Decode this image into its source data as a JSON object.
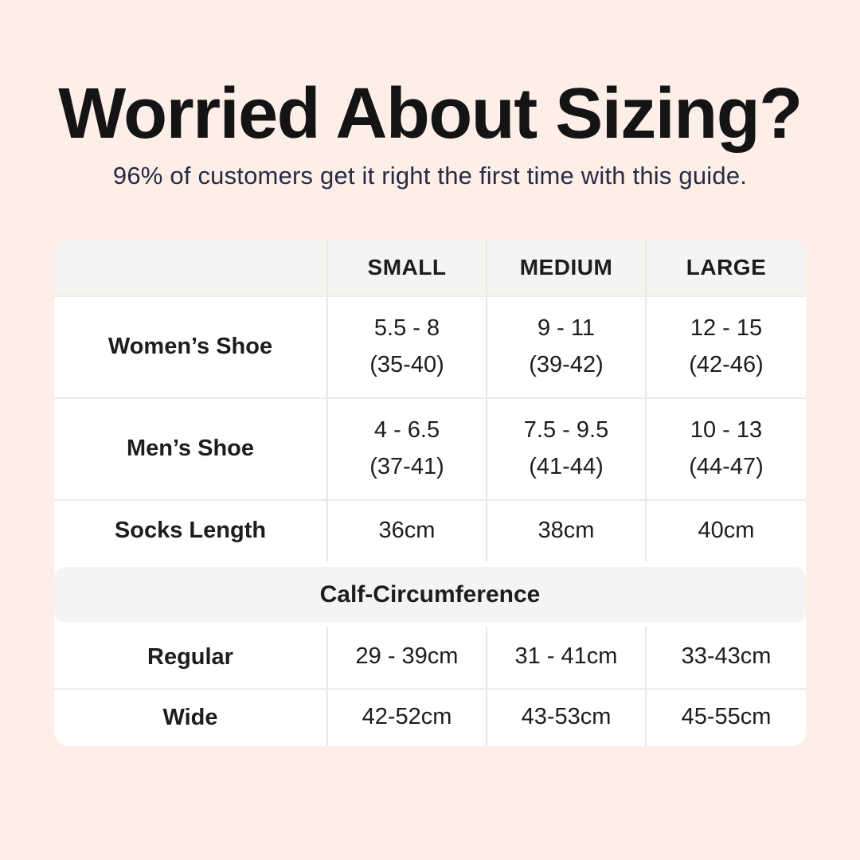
{
  "page": {
    "title": "Worried About Sizing?",
    "subtitle": "96% of customers get it right the first time with this guide.",
    "background_color": "#fdefe7",
    "title_color": "#141414",
    "subtitle_color": "#272b45"
  },
  "table": {
    "card_color": "#ffffff",
    "header_bg_color": "#f5f4f2",
    "divider_color": "#e9e7e4",
    "text_color": "#1d1d1f",
    "headers": [
      "SMALL",
      "MEDIUM",
      "LARGE"
    ],
    "rows": [
      {
        "label": "Women’s Shoe",
        "cells": [
          {
            "l1": "5.5 - 8",
            "l2": "(35-40)"
          },
          {
            "l1": "9 - 11",
            "l2": "(39-42)"
          },
          {
            "l1": "12 - 15",
            "l2": "(42-46)"
          }
        ]
      },
      {
        "label": "Men’s Shoe",
        "cells": [
          {
            "l1": "4 - 6.5",
            "l2": "(37-41)"
          },
          {
            "l1": "7.5 - 9.5",
            "l2": "(41-44)"
          },
          {
            "l1": "10 - 13",
            "l2": "(44-47)"
          }
        ]
      },
      {
        "label": "Socks Length",
        "cells": [
          {
            "l1": "36cm"
          },
          {
            "l1": "38cm"
          },
          {
            "l1": "40cm"
          }
        ]
      }
    ],
    "section_label": "Calf-Circumference",
    "section_rows": [
      {
        "label": "Regular",
        "cells": [
          {
            "l1": "29 - 39cm"
          },
          {
            "l1": "31 - 41cm"
          },
          {
            "l1": "33-43cm"
          }
        ]
      },
      {
        "label": "Wide",
        "cells": [
          {
            "l1": "42-52cm"
          },
          {
            "l1": "43-53cm"
          },
          {
            "l1": "45-55cm"
          }
        ]
      }
    ]
  },
  "chart_data": {
    "type": "table",
    "title": "Worried About Sizing?",
    "subtitle": "96% of customers get it right the first time with this guide.",
    "columns": [
      "",
      "SMALL",
      "MEDIUM",
      "LARGE"
    ],
    "rows": [
      [
        "Women’s Shoe",
        "5.5 - 8 (35-40)",
        "9 - 11 (39-42)",
        "12 - 15 (42-46)"
      ],
      [
        "Men’s Shoe",
        "4 - 6.5 (37-41)",
        "7.5 - 9.5 (41-44)",
        "10 - 13 (44-47)"
      ],
      [
        "Socks Length",
        "36cm",
        "38cm",
        "40cm"
      ],
      [
        "Calf-Circumference",
        "",
        "",
        ""
      ],
      [
        "Regular",
        "29 - 39cm",
        "31 - 41cm",
        "33-43cm"
      ],
      [
        "Wide",
        "42-52cm",
        "43-53cm",
        "45-55cm"
      ]
    ],
    "layout": {
      "section_header_row_index": 3,
      "first_column_is_label": true,
      "grid": "light-gray-dividers"
    }
  }
}
